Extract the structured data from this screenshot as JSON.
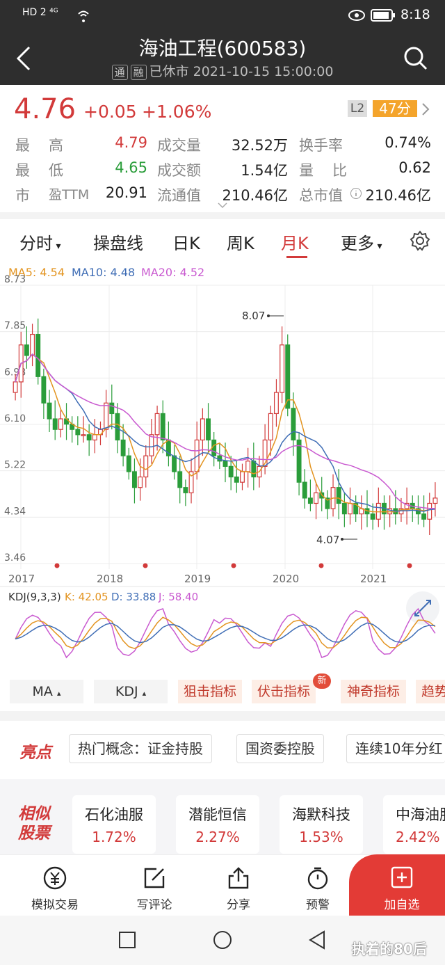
{
  "status": {
    "left": "HD 2 ⁴ᴳ",
    "time": "8:18"
  },
  "header": {
    "title": "海油工程(600583)",
    "tag1": "通",
    "tag2": "融",
    "status": "已休市 2021-10-15 15:00:00"
  },
  "quote": {
    "price": "4.76",
    "change": "+0.05",
    "pct": "+1.06%",
    "l2": "L2",
    "score": "47分"
  },
  "stats": [
    {
      "l1": "最",
      "l2": "高",
      "v": "4.79",
      "l3": "成交量",
      "v2": "32.52万",
      "l4": "换手率",
      "v3": "0.74%"
    },
    {
      "l1": "最",
      "l2": "低",
      "v": "4.65",
      "l3": "成交额",
      "v2": "1.54亿",
      "l4": "量",
      "l5": "比",
      "v3": "0.62"
    },
    {
      "l1": "市",
      "l2": "盈TTM",
      "v": "20.91",
      "l3": "流通值",
      "v2": "210.46亿",
      "l4": "总市值",
      "v3": "210.46亿"
    }
  ],
  "tabs": {
    "t1": "分时",
    "t2": "操盘线",
    "t3": "日K",
    "t4": "周K",
    "t5": "月K",
    "t6": "更多"
  },
  "ma": {
    "ma5": "MA5: 4.54",
    "ma10": "MA10: 4.48",
    "ma20": "MA20: 4.52"
  },
  "kdj": {
    "label": "KDJ(9,3,3)",
    "k": "K: 42.05",
    "d": "D: 33.88",
    "j": "J: 58.40"
  },
  "chart_data": {
    "type": "candlestick",
    "y_ticks": [
      "8.73",
      "7.85",
      "6.98",
      "6.10",
      "5.22",
      "4.34",
      "3.46"
    ],
    "x_ticks": [
      "2017",
      "2018",
      "2019",
      "2020",
      "2021"
    ],
    "annotations": {
      "high": "8.07",
      "low": "4.07"
    },
    "ylim": [
      3.46,
      8.73
    ]
  },
  "indicators": {
    "ma": "MA",
    "kdj": "KDJ",
    "b1": "狙击指标",
    "b2": "伏击指标",
    "new": "新",
    "b3": "神奇指标",
    "b4": "趋势"
  },
  "highlights": {
    "label": "亮点",
    "c1": "热门概念：证金持股",
    "c2": "国资委控股",
    "c3": "连续10年分红"
  },
  "similar": {
    "label1": "相似",
    "label2": "股票",
    "items": [
      {
        "name": "石化油服",
        "pct": "1.72%"
      },
      {
        "name": "潜能恒信",
        "pct": "2.27%"
      },
      {
        "name": "海默科技",
        "pct": "1.53%"
      },
      {
        "name": "中海油服",
        "pct": "2.42%"
      }
    ]
  },
  "bottom": {
    "b1": "模拟交易",
    "b2": "写评论",
    "b3": "分享",
    "b4": "预警",
    "b5": "加自选"
  },
  "watermark": "执着的80后",
  "colors": {
    "up": "#d23a3a",
    "down": "#2a9d3a",
    "ma5": "#e39420",
    "ma10": "#3f6db5",
    "ma20": "#c95ad0"
  }
}
